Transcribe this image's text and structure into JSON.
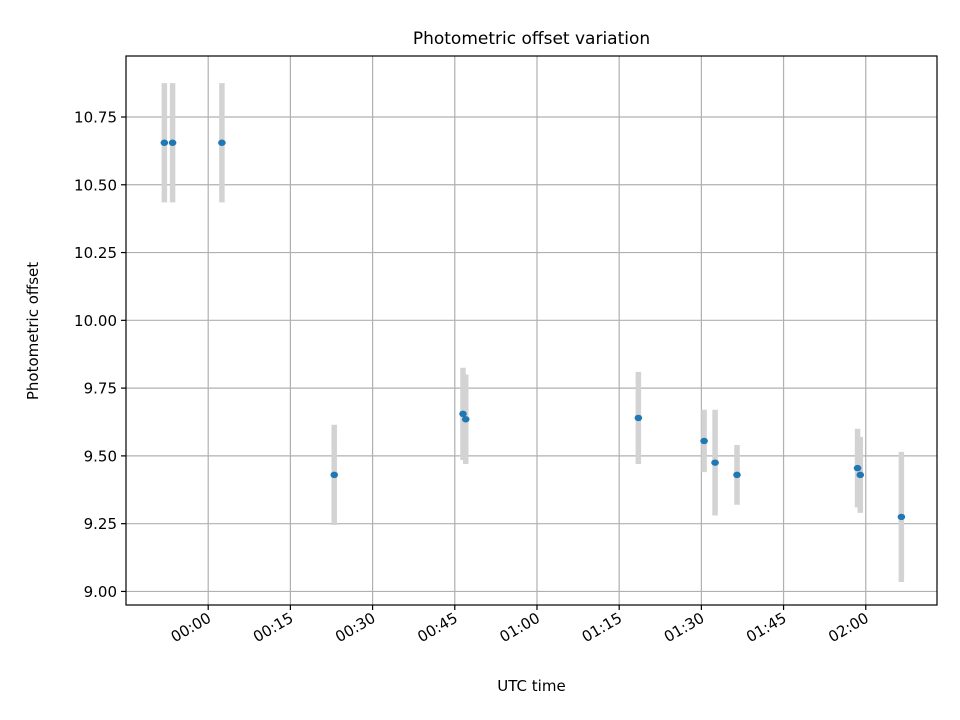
{
  "chart_data": {
    "type": "scatter",
    "title": "Photometric offset variation",
    "xlabel": "UTC time",
    "ylabel": "Photometric offset",
    "xlim": [
      "23:45",
      "02:13"
    ],
    "ylim": [
      8.95,
      10.975
    ],
    "x_ticks": [
      "00:00",
      "00:15",
      "00:30",
      "00:45",
      "01:00",
      "01:15",
      "01:30",
      "01:45",
      "02:00"
    ],
    "y_ticks": [
      "9.00",
      "9.25",
      "9.50",
      "9.75",
      "10.00",
      "10.25",
      "10.50",
      "10.75"
    ],
    "grid": true,
    "colors": {
      "point": "#1f77b4",
      "errorbar": "#d3d3d3",
      "grid": "#b0b0b0"
    },
    "points": [
      {
        "x": "23:52",
        "y": 10.655,
        "err": 0.22
      },
      {
        "x": "23:53.5",
        "y": 10.655,
        "err": 0.22
      },
      {
        "x": "00:02.5",
        "y": 10.655,
        "err": 0.22
      },
      {
        "x": "00:23",
        "y": 9.43,
        "err": 0.185
      },
      {
        "x": "00:46.5",
        "y": 9.655,
        "err": 0.17
      },
      {
        "x": "00:47",
        "y": 9.635,
        "err": 0.165
      },
      {
        "x": "01:18.5",
        "y": 9.64,
        "err": 0.17
      },
      {
        "x": "01:30.5",
        "y": 9.555,
        "err": 0.115
      },
      {
        "x": "01:32.5",
        "y": 9.475,
        "err": 0.195
      },
      {
        "x": "01:36.5",
        "y": 9.43,
        "err": 0.11
      },
      {
        "x": "01:58.5",
        "y": 9.455,
        "err": 0.145
      },
      {
        "x": "01:59",
        "y": 9.43,
        "err": 0.14
      },
      {
        "x": "02:06.5",
        "y": 9.275,
        "err": 0.24
      }
    ]
  }
}
